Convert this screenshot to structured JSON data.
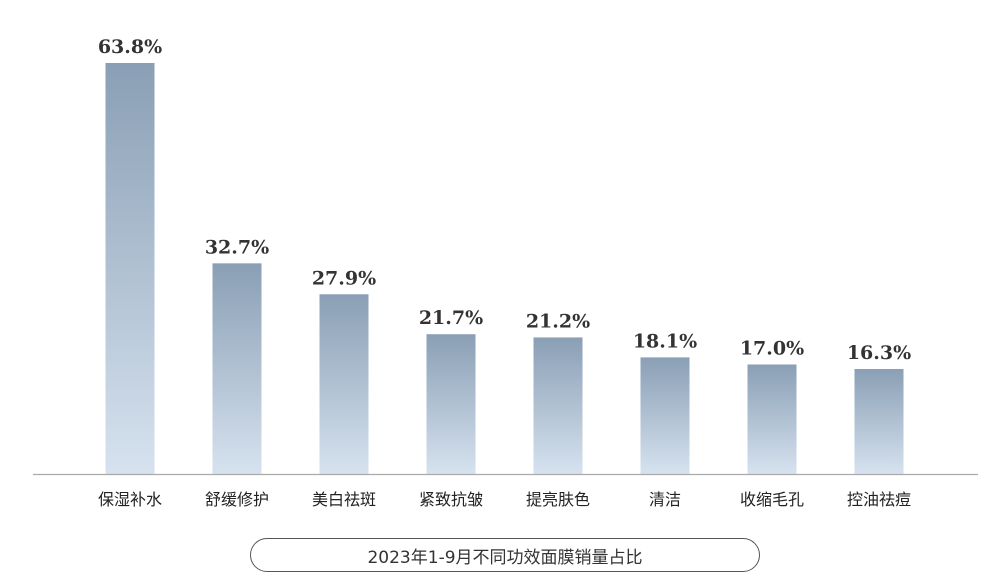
{
  "chart_data": {
    "type": "bar",
    "categories": [
      "保湿补水",
      "舒缓修护",
      "美白祛斑",
      "紧致抗皱",
      "提亮肤色",
      "清洁",
      "收缩毛孔",
      "控油祛痘"
    ],
    "values": [
      63.8,
      32.7,
      27.9,
      21.7,
      21.2,
      18.1,
      17.0,
      16.3
    ],
    "value_labels": [
      "63.8%",
      "32.7%",
      "27.9%",
      "21.7%",
      "21.2%",
      "18.1%",
      "17.0%",
      "16.3%"
    ],
    "title": "2023年1-9月不同功效面膜销量占比",
    "xlabel": "",
    "ylabel": "",
    "ylim": [
      0,
      63.8
    ],
    "grid": false,
    "legend": "none",
    "colors": {
      "bar_top": "#8a9fb5",
      "bar_bottom": "#d6e2ef",
      "axis": "#aaaaaa"
    }
  }
}
